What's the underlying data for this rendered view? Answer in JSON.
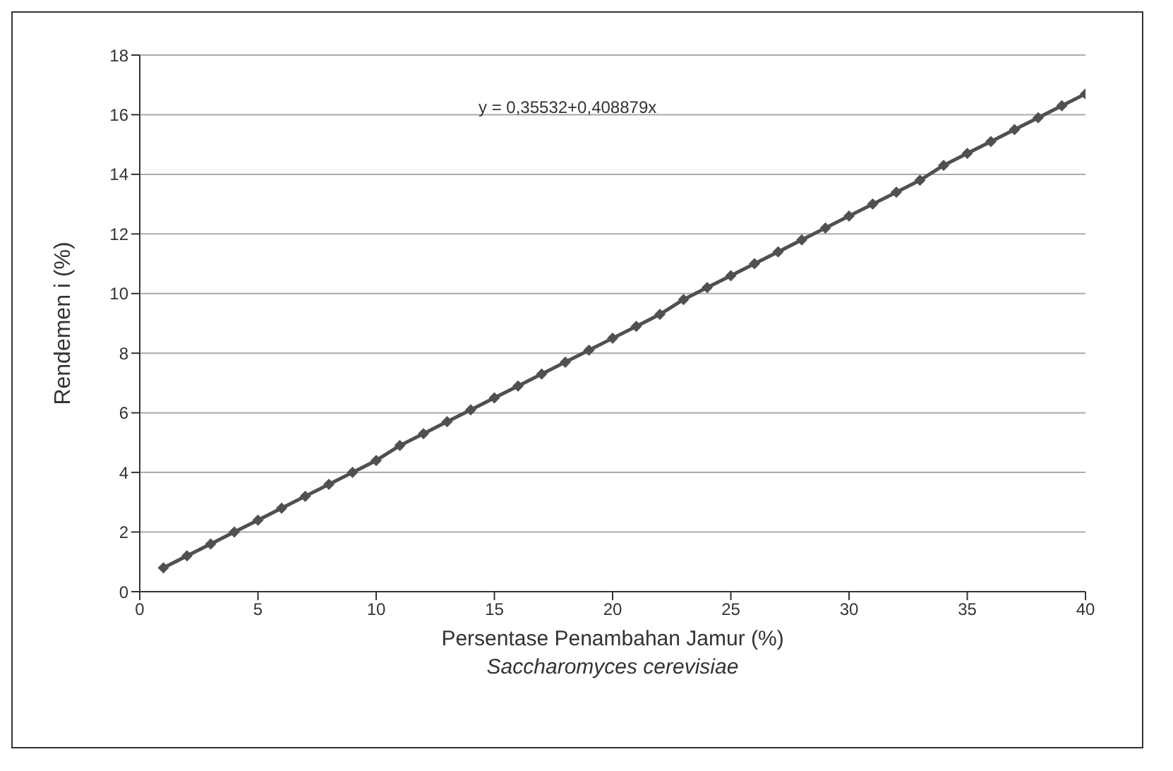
{
  "chart_data": {
    "type": "line",
    "xlabel": "Persentase Penambahan Jamur (%)\nSaccharomyces cerevisiae",
    "ylabel": "Rendemen i (%)",
    "annotations": [
      "y =  0,35532+0,408879x"
    ],
    "x": [
      1,
      2,
      3,
      4,
      5,
      6,
      7,
      8,
      9,
      10,
      11,
      12,
      13,
      14,
      15,
      16,
      17,
      18,
      19,
      20,
      21,
      22,
      23,
      24,
      25,
      26,
      27,
      28,
      29,
      30,
      31,
      32,
      33,
      34,
      35,
      36,
      37,
      38,
      39,
      40
    ],
    "series": [
      {
        "color": "#505050",
        "values": [
          0.8,
          1.2,
          1.6,
          2.0,
          2.4,
          2.8,
          3.2,
          3.6,
          4.0,
          4.4,
          4.9,
          5.3,
          5.7,
          6.1,
          6.5,
          6.9,
          7.3,
          7.7,
          8.1,
          8.5,
          8.9,
          9.3,
          9.8,
          10.2,
          10.6,
          11.0,
          11.4,
          11.8,
          12.2,
          12.6,
          13.0,
          13.4,
          13.8,
          14.3,
          14.7,
          15.1,
          15.5,
          15.9,
          16.3,
          16.7
        ]
      }
    ],
    "xlim": [
      0,
      40
    ],
    "xticks": [
      0,
      5,
      10,
      15,
      20,
      25,
      30,
      35,
      40
    ],
    "ylim": [
      0,
      18
    ],
    "yticks": [
      0,
      2,
      4,
      6,
      8,
      10,
      12,
      14,
      16,
      18
    ],
    "grid": "y",
    "marker": "diamond",
    "line_style": "solid"
  }
}
